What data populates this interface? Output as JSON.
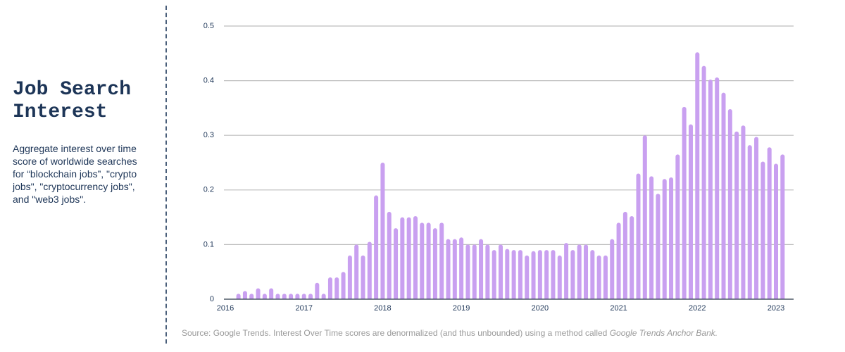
{
  "chart_data": {
    "type": "bar",
    "title": "Job Search Interest",
    "subtitle": "Aggregate interest over time score of worldwide searches for “blockchain jobs”, \"crypto jobs\", \"cryptocurrency jobs\", and \"web3 jobs\".",
    "source": "Source: Google Trends. Interest Over Time scores are denormalized (and thus unbounded) using a method called",
    "source_method": "Google Trends Anchor Bank.",
    "categories": [
      "2016",
      null,
      null,
      null,
      null,
      null,
      null,
      null,
      null,
      null,
      null,
      null,
      "2017",
      null,
      null,
      null,
      null,
      null,
      null,
      null,
      null,
      null,
      null,
      null,
      "2018",
      null,
      null,
      null,
      null,
      null,
      null,
      null,
      null,
      null,
      null,
      null,
      "2019",
      null,
      null,
      null,
      null,
      null,
      null,
      null,
      null,
      null,
      null,
      null,
      "2020",
      null,
      null,
      null,
      null,
      null,
      null,
      null,
      null,
      null,
      null,
      null,
      "2021",
      null,
      null,
      null,
      null,
      null,
      null,
      null,
      null,
      null,
      null,
      null,
      "2022",
      null,
      null,
      null,
      null,
      null,
      null,
      null,
      null,
      null,
      null,
      null,
      "2023",
      null
    ],
    "values": [
      null,
      null,
      0.01,
      0.015,
      0.01,
      0.02,
      0.01,
      0.02,
      0.01,
      0.01,
      0.01,
      0.01,
      0.01,
      0.01,
      0.03,
      0.01,
      0.04,
      0.04,
      0.05,
      0.08,
      0.1,
      0.08,
      0.105,
      0.19,
      0.25,
      0.16,
      0.13,
      0.15,
      0.15,
      0.152,
      0.14,
      0.14,
      0.13,
      0.14,
      0.11,
      0.11,
      0.113,
      0.1,
      0.1,
      0.11,
      0.1,
      0.09,
      0.1,
      0.092,
      0.09,
      0.09,
      0.08,
      0.088,
      0.09,
      0.09,
      0.09,
      0.08,
      0.103,
      0.09,
      0.1,
      0.1,
      0.09,
      0.08,
      0.08,
      0.11,
      0.14,
      0.16,
      0.152,
      0.23,
      0.3,
      0.225,
      0.193,
      0.22,
      0.223,
      0.265,
      0.352,
      0.32,
      0.452,
      0.427,
      0.402,
      0.406,
      0.378,
      0.348,
      0.307,
      0.318,
      0.282,
      0.297,
      0.252,
      0.278,
      0.248,
      0.265
    ],
    "color": "#c9a0f0",
    "ylim": [
      0,
      0.5
    ],
    "yticks": [
      0,
      0.1,
      0.2,
      0.3,
      0.4,
      0.5
    ],
    "grid": true
  }
}
